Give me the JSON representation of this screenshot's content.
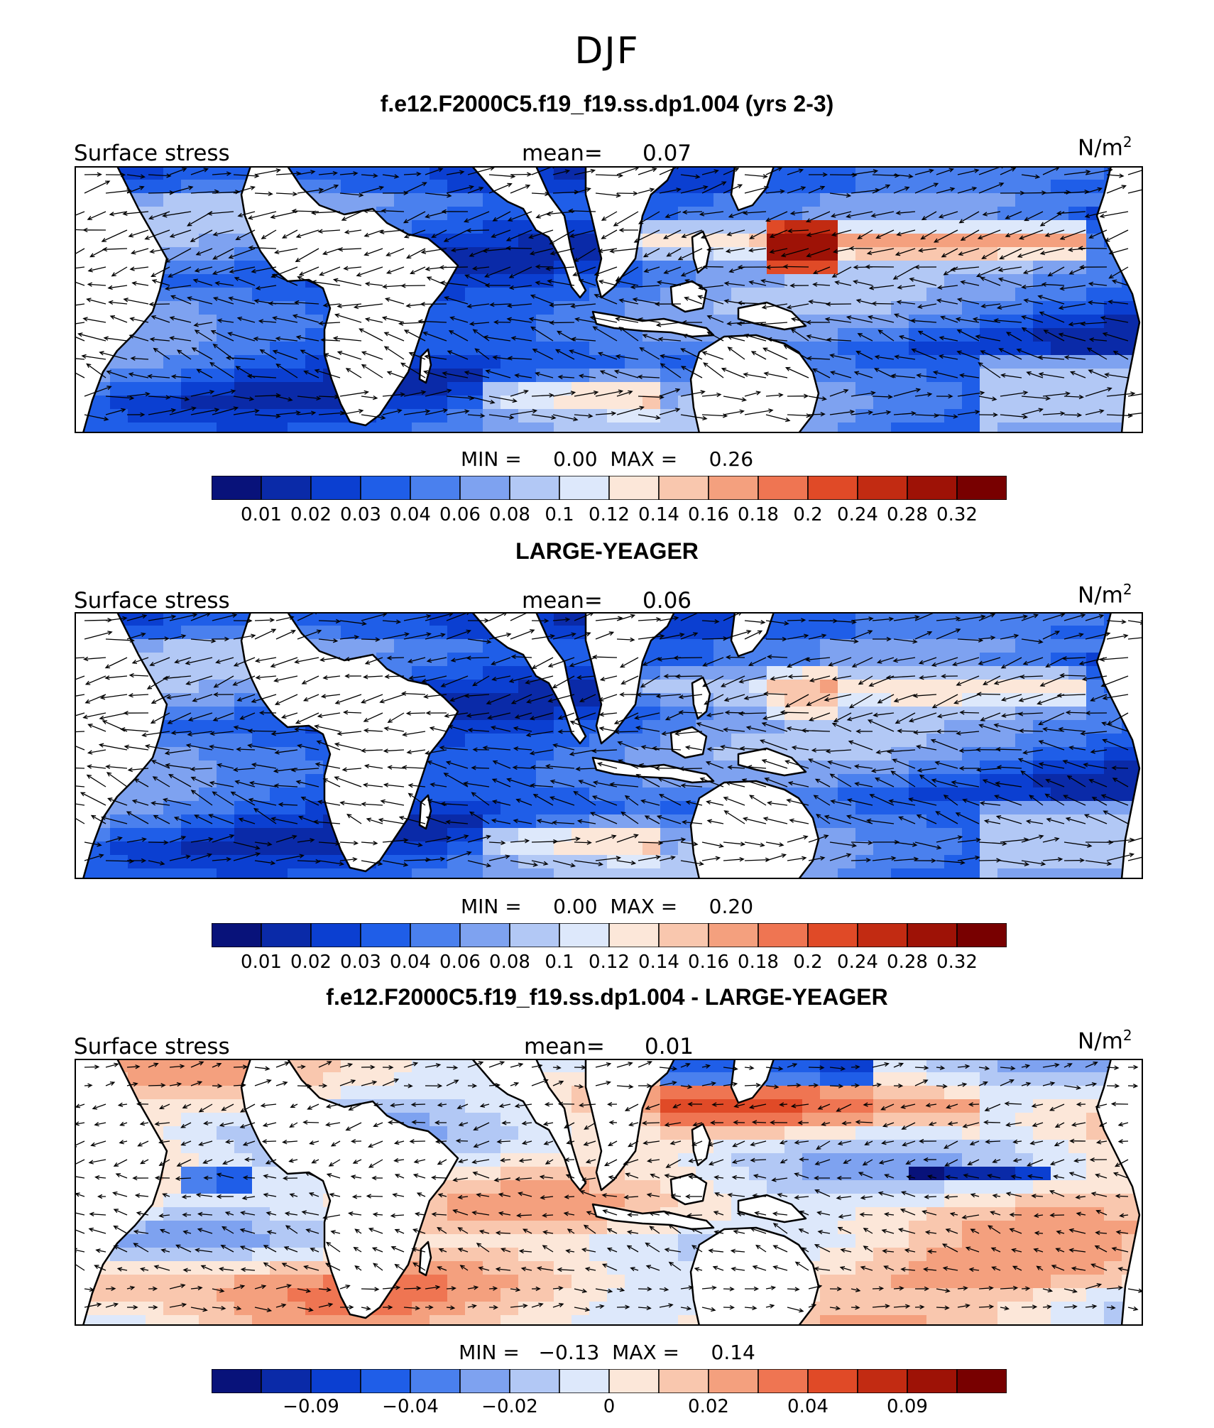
{
  "main_title": "DJF",
  "colors": {
    "seq": [
      "#08127a",
      "#0a2aa8",
      "#0b3fd1",
      "#1f5ee8",
      "#4a80ee",
      "#7ea2f0",
      "#b2c8f5",
      "#dde8fb",
      "#fce7d9",
      "#f9c7ae",
      "#f4a07e",
      "#ef7552",
      "#e04a27",
      "#c22b12",
      "#9e1206",
      "#780000"
    ],
    "land": "#ffffff",
    "vector": "#000000"
  },
  "panels": [
    {
      "title": "f.e12.F2000C5.f19_f19.ss.dp1.004 (yrs 2-3)",
      "left_label": "Surface stress",
      "mean_label": "mean=",
      "mean_value": "0.07",
      "units": "N/m",
      "units_sup": "2",
      "minmax": "MIN =     0.00  MAX =     0.26",
      "colorbar_labels": [
        "0.01",
        "0.02",
        "0.03",
        "0.04",
        "0.06",
        "0.08",
        "0.1",
        "0.12",
        "0.14",
        "0.16",
        "0.18",
        "0.2",
        "0.24",
        "0.28",
        "0.32"
      ]
    },
    {
      "title": "LARGE-YEAGER",
      "left_label": "Surface stress",
      "mean_label": "mean=",
      "mean_value": "0.06",
      "units": "N/m",
      "units_sup": "2",
      "minmax": "MIN =     0.00  MAX =     0.20",
      "colorbar_labels": [
        "0.01",
        "0.02",
        "0.03",
        "0.04",
        "0.06",
        "0.08",
        "0.1",
        "0.12",
        "0.14",
        "0.16",
        "0.18",
        "0.2",
        "0.24",
        "0.28",
        "0.32"
      ]
    },
    {
      "title": "f.e12.F2000C5.f19_f19.ss.dp1.004 - LARGE-YEAGER",
      "left_label": "Surface stress",
      "mean_label": "mean=",
      "mean_value": "0.01",
      "units": "N/m",
      "units_sup": "2",
      "minmax": "MIN =   −0.13  MAX =     0.14",
      "colorbar_labels": [
        "−0.09",
        "−0.04",
        "−0.02",
        "0",
        "0.02",
        "0.04",
        "0.09"
      ]
    }
  ],
  "chart_data": [
    {
      "type": "heatmap",
      "title": "f.e12.F2000C5.f19_f19.ss.dp1.004 (yrs 2-3)",
      "field": "Surface stress",
      "units": "N/m2",
      "mean": 0.07,
      "min": 0.0,
      "max": 0.26,
      "levels": [
        0.01,
        0.02,
        0.03,
        0.04,
        0.06,
        0.08,
        0.1,
        0.12,
        0.14,
        0.16,
        0.18,
        0.2,
        0.24,
        0.28,
        0.32
      ]
    },
    {
      "type": "heatmap",
      "title": "LARGE-YEAGER",
      "field": "Surface stress",
      "units": "N/m2",
      "mean": 0.06,
      "min": 0.0,
      "max": 0.2,
      "levels": [
        0.01,
        0.02,
        0.03,
        0.04,
        0.06,
        0.08,
        0.1,
        0.12,
        0.14,
        0.16,
        0.18,
        0.2,
        0.24,
        0.28,
        0.32
      ]
    },
    {
      "type": "heatmap",
      "title": "f.e12.F2000C5.f19_f19.ss.dp1.004 - LARGE-YEAGER",
      "field": "Surface stress",
      "units": "N/m2",
      "mean": 0.01,
      "min": -0.13,
      "max": 0.14,
      "levels": [
        -0.09,
        -0.04,
        -0.02,
        0,
        0.02,
        0.04,
        0.09
      ]
    }
  ]
}
